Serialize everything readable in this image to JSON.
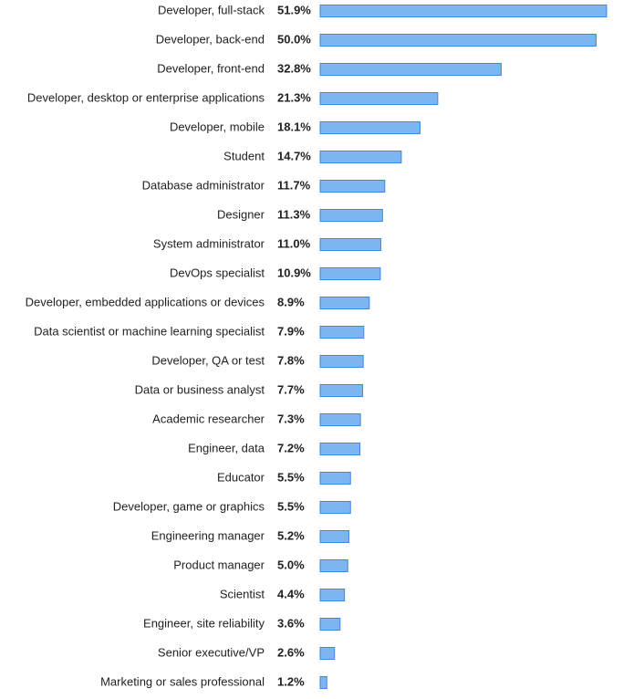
{
  "chart_data": {
    "type": "bar",
    "orientation": "horizontal",
    "categories": [
      "Developer, full-stack",
      "Developer, back-end",
      "Developer, front-end",
      "Developer, desktop or enterprise applications",
      "Developer, mobile",
      "Student",
      "Database administrator",
      "Designer",
      "System administrator",
      "DevOps specialist",
      "Developer, embedded applications or devices",
      "Data scientist or machine learning specialist",
      "Developer, QA or test",
      "Data or business analyst",
      "Academic researcher",
      "Engineer, data",
      "Educator",
      "Developer, game or graphics",
      "Engineering manager",
      "Product manager",
      "Scientist",
      "Engineer, site reliability",
      "Senior executive/VP",
      "Marketing or sales professional"
    ],
    "values": [
      51.9,
      50.0,
      32.8,
      21.3,
      18.1,
      14.7,
      11.7,
      11.3,
      11.0,
      10.9,
      8.9,
      7.9,
      7.8,
      7.7,
      7.3,
      7.2,
      5.5,
      5.5,
      5.2,
      5.0,
      4.4,
      3.6,
      2.6,
      1.2
    ],
    "value_labels": [
      "51.9%",
      "50.0%",
      "32.8%",
      "21.3%",
      "18.1%",
      "14.7%",
      "11.7%",
      "11.3%",
      "11.0%",
      "10.9%",
      "8.9%",
      "7.9%",
      "7.8%",
      "7.7%",
      "7.3%",
      "7.2%",
      "5.5%",
      "5.5%",
      "5.2%",
      "5.0%",
      "4.4%",
      "3.6%",
      "2.6%",
      "1.2%"
    ],
    "color": "#7db5f3",
    "edge_color": "#3d86de"
  }
}
